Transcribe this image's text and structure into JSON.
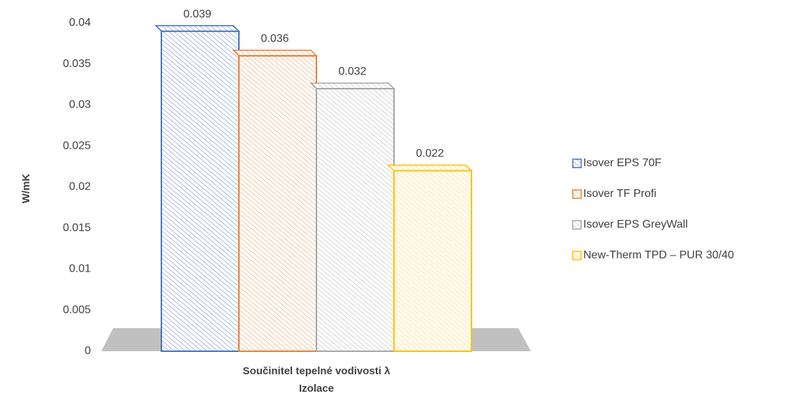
{
  "chart_data": {
    "type": "bar",
    "categories": [
      "Součinitel tepelné vodivosti λ"
    ],
    "x_label": "Izolace",
    "y_label": "W/mK",
    "ylim": [
      0,
      0.04
    ],
    "yticks": [
      0,
      0.005,
      0.01,
      0.015,
      0.02,
      0.025,
      0.03,
      0.035,
      0.04
    ],
    "legend": "right",
    "series": [
      {
        "name": "Isover EPS 70F",
        "color": "#4472c4",
        "values": [
          0.039
        ]
      },
      {
        "name": "Isover TF Profi",
        "color": "#ed7d31",
        "values": [
          0.036
        ]
      },
      {
        "name": "Isover EPS GreyWall",
        "color": "#a5a5a5",
        "values": [
          0.032
        ]
      },
      {
        "name": "New-Therm TPD – PUR 30/40",
        "color": "#ffc000",
        "values": [
          0.022
        ]
      }
    ]
  }
}
